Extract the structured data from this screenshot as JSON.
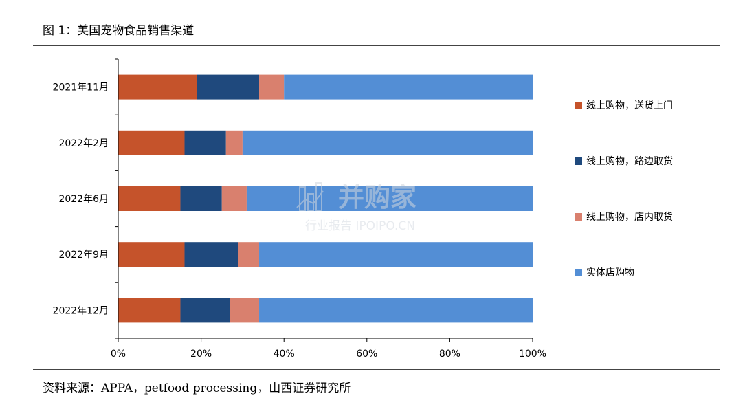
{
  "figure_title": "图 1：美国宠物食品销售渠道",
  "source_note": "资料来源：APPA，petfood processing，山西证券研究所",
  "watermark": {
    "brand": "并购家",
    "tagline": "行业报告 IPOIPO.CN"
  },
  "chart_data": {
    "type": "bar",
    "orientation": "horizontal",
    "stacked": true,
    "percent_stacked": true,
    "categories": [
      "2021年11月",
      "2022年2月",
      "2022年6月",
      "2022年9月",
      "2022年12月"
    ],
    "series": [
      {
        "name": "线上购物，送货上门",
        "color": "#c5532b",
        "values": [
          19,
          16,
          15,
          16,
          15
        ]
      },
      {
        "name": "线上购物，路边取货",
        "color": "#1f497d",
        "values": [
          15,
          10,
          10,
          13,
          12
        ]
      },
      {
        "name": "线上购物，店内取货",
        "color": "#d9806e",
        "values": [
          6,
          4,
          6,
          5,
          7
        ]
      },
      {
        "name": "实体店购物",
        "color": "#538ed5",
        "values": [
          60,
          70,
          69,
          66,
          66
        ]
      }
    ],
    "x_ticks": [
      "0%",
      "20%",
      "40%",
      "60%",
      "80%",
      "100%"
    ],
    "xlim": [
      0,
      100
    ],
    "grid": false,
    "legend_position": "right"
  }
}
